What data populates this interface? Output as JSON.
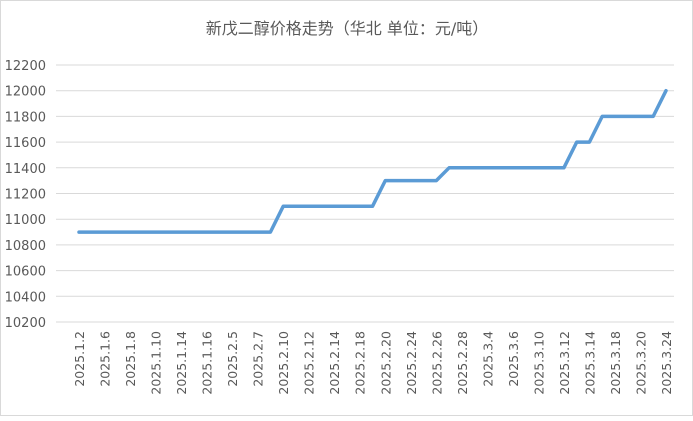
{
  "chart_data": {
    "type": "line",
    "title": "新戊二醇价格走势（华北 单位：元/吨）",
    "xlabel": "",
    "ylabel": "",
    "ylim": [
      10200,
      12200
    ],
    "yticks": [
      10200,
      10400,
      10600,
      10800,
      11000,
      11200,
      11400,
      11600,
      11800,
      12000,
      12200
    ],
    "grid": true,
    "legend": "none",
    "x_tick_labels": [
      "2025.1.2",
      "2025.1.6",
      "2025.1.8",
      "2025.1.10",
      "2025.1.14",
      "2025.1.16",
      "2025.2.5",
      "2025.2.7",
      "2025.2.10",
      "2025.2.12",
      "2025.2.14",
      "2025.2.18",
      "2025.2.20",
      "2025.2.24",
      "2025.2.26",
      "2025.2.28",
      "2025.3.4",
      "2025.3.6",
      "2025.3.10",
      "2025.3.12",
      "2025.3.14",
      "2025.3.18",
      "2025.3.20",
      "2025.3.24"
    ],
    "x_tick_every": 2,
    "series": [
      {
        "color": "#5b9bd5",
        "values": [
          10900,
          10900,
          10900,
          10900,
          10900,
          10900,
          10900,
          10900,
          10900,
          10900,
          10900,
          10900,
          10900,
          10900,
          10900,
          10900,
          11100,
          11100,
          11100,
          11100,
          11100,
          11100,
          11100,
          11100,
          11300,
          11300,
          11300,
          11300,
          11300,
          11400,
          11400,
          11400,
          11400,
          11400,
          11400,
          11400,
          11400,
          11400,
          11400,
          11600,
          11600,
          11800,
          11800,
          11800,
          11800,
          11800,
          12000
        ]
      }
    ]
  }
}
